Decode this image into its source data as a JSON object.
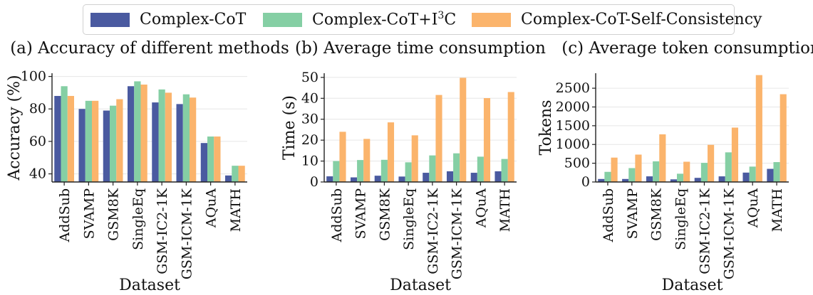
{
  "legend": {
    "items": [
      {
        "label": "Complex-CoT",
        "color": "#4a5aa0"
      },
      {
        "label": "Complex-CoT+I3C",
        "color": "#85cfa4"
      },
      {
        "label": "Complex-CoT-Self-Consistency",
        "color": "#fbb46c"
      }
    ]
  },
  "chart_data": [
    {
      "type": "bar",
      "title": "(a) Accuracy of different methods",
      "xlabel": "Dataset",
      "ylabel": "Accuracy (%)",
      "ylim": [
        35,
        102
      ],
      "yticks": [
        40,
        60,
        80,
        100
      ],
      "grid": "horizontal",
      "categories": [
        "AddSub",
        "SVAMP",
        "GSM8K",
        "SingleEq",
        "GSM-IC2-1K",
        "GSM-ICM-1K",
        "AQuA",
        "MATH"
      ],
      "series": [
        {
          "name": "Complex-CoT",
          "values": [
            88,
            80,
            79,
            94,
            84,
            83,
            59,
            39
          ]
        },
        {
          "name": "Complex-CoT+I3C",
          "values": [
            94,
            85,
            82,
            97,
            92,
            89,
            63,
            45
          ]
        },
        {
          "name": "Complex-CoT-Self-Consistency",
          "values": [
            88,
            85,
            86,
            95,
            90,
            87,
            63,
            45
          ]
        }
      ]
    },
    {
      "type": "bar",
      "title": "(b) Average time consumption",
      "xlabel": "Dataset",
      "ylabel": "Time (s)",
      "ylim": [
        0,
        52
      ],
      "yticks": [
        0,
        10,
        20,
        30,
        40,
        50
      ],
      "grid": "horizontal",
      "categories": [
        "AddSub",
        "SVAMP",
        "GSM8K",
        "SingleEq",
        "GSM-IC2-1K",
        "GSM-ICM-1K",
        "AQuA",
        "MATH"
      ],
      "series": [
        {
          "name": "Complex-CoT",
          "values": [
            2.7,
            2.2,
            3.0,
            2.6,
            4.4,
            5.1,
            4.4,
            5.1
          ]
        },
        {
          "name": "Complex-CoT+I3C",
          "values": [
            10,
            10.5,
            10.6,
            9.4,
            12.7,
            13.7,
            12.1,
            11
          ]
        },
        {
          "name": "Complex-CoT-Self-Consistency",
          "values": [
            24,
            20.6,
            28.5,
            22.3,
            41.6,
            49.8,
            40.1,
            43
          ]
        }
      ]
    },
    {
      "type": "bar",
      "title": "(c) Average token consumption",
      "xlabel": "Dataset",
      "ylabel": "Tokens",
      "ylim": [
        0,
        2900
      ],
      "yticks": [
        0,
        500,
        1000,
        1500,
        2000,
        2500
      ],
      "grid": "horizontal",
      "categories": [
        "AddSub",
        "SVAMP",
        "GSM8K",
        "SingleEq",
        "GSM-IC2-1K",
        "GSM-ICM-1K",
        "AQuA",
        "MATH"
      ],
      "series": [
        {
          "name": "Complex-CoT",
          "values": [
            80,
            80,
            150,
            70,
            110,
            150,
            250,
            350
          ]
        },
        {
          "name": "Complex-CoT+I3C",
          "values": [
            270,
            370,
            550,
            220,
            510,
            790,
            410,
            530
          ]
        },
        {
          "name": "Complex-CoT-Self-Consistency",
          "values": [
            650,
            730,
            1270,
            540,
            990,
            1450,
            2850,
            2340
          ]
        }
      ]
    }
  ]
}
